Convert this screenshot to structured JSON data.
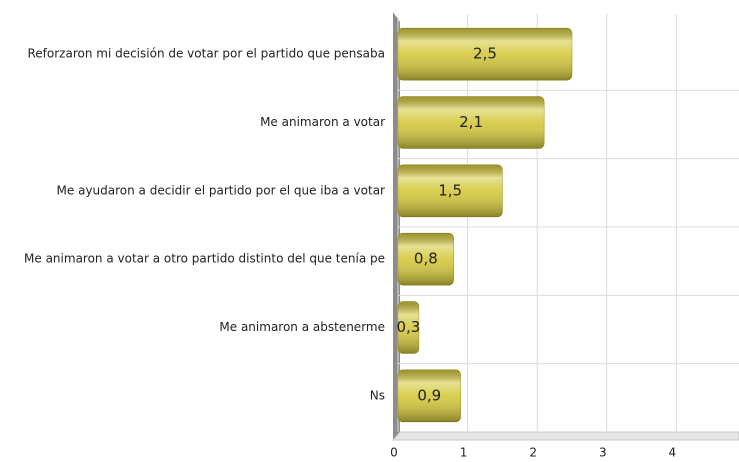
{
  "chart_data": {
    "type": "bar",
    "orientation": "horizontal",
    "categories": [
      "Reforzaron mi decisión de votar por el partido que pensaba",
      "Me animaron a votar",
      "Me ayudaron a decidir el partido por el que iba a votar",
      "Me animaron a votar a otro partido distinto del que tenía pe",
      "Me animaron a abstenerme",
      "Ns"
    ],
    "values": [
      2.5,
      2.1,
      1.5,
      0.8,
      0.3,
      0.9
    ],
    "value_labels": [
      "2,5",
      "2,1",
      "1,5",
      "0,8",
      "0,3",
      "0,9"
    ],
    "color": "#d4c83c",
    "xlim": [
      0,
      4.9
    ],
    "xticks": [
      0,
      1,
      2,
      3,
      4
    ],
    "grid": true
  }
}
